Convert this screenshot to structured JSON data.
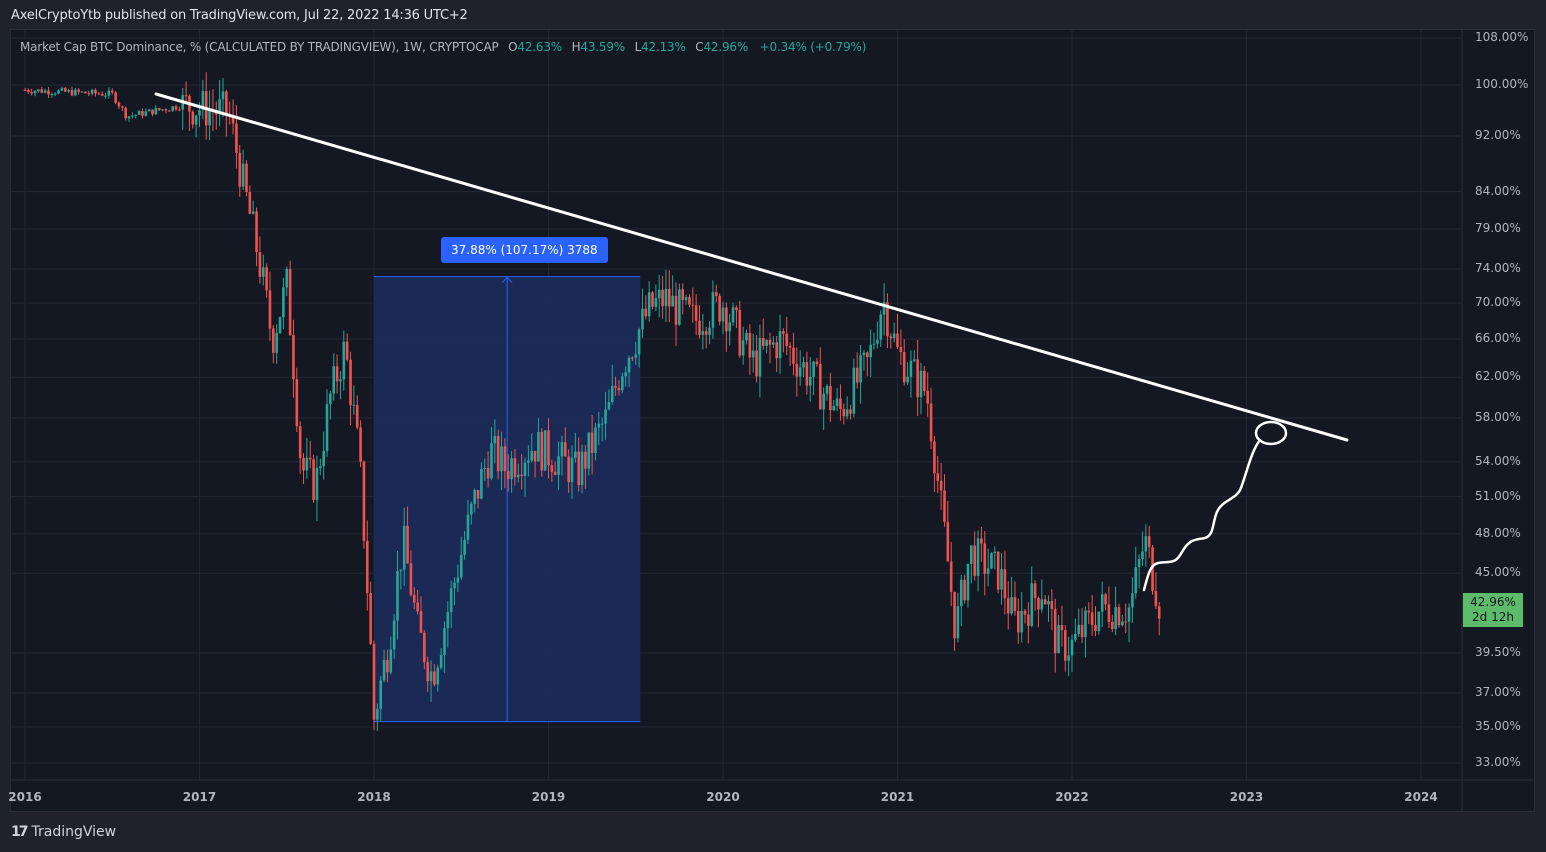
{
  "header": {
    "published": "AxelCryptoYtb published on TradingView.com, Jul 22, 2022 14:36 UTC+2"
  },
  "legend": {
    "symbol": "Market Cap BTC Dominance, % (CALCULATED BY TRADINGVIEW), 1W, CRYPTOCAP",
    "open_key": "O",
    "open": "42.63%",
    "high_key": "H",
    "high": "43.59%",
    "low_key": "L",
    "low": "42.13%",
    "close_key": "C",
    "close": "42.96%",
    "change": "+0.34% (+0.79%)"
  },
  "price_axis": {
    "labels": [
      "108.00%",
      "100.00%",
      "92.00%",
      "84.00%",
      "79.00%",
      "74.00%",
      "70.00%",
      "66.00%",
      "62.00%",
      "58.00%",
      "54.00%",
      "51.00%",
      "48.00%",
      "45.00%",
      "39.50%",
      "37.00%",
      "35.00%",
      "33.00%"
    ],
    "last_price": "42.96%",
    "countdown": "2d 12h"
  },
  "time_axis": {
    "labels": [
      "2016",
      "2017",
      "2018",
      "2019",
      "2020",
      "2021",
      "2022",
      "2023",
      "2024"
    ]
  },
  "measure_tool": {
    "label": "37.88% (107.17%) 3788"
  },
  "footer": {
    "brand": "TradingView",
    "logo": "17"
  },
  "colors": {
    "up": "#26a69a",
    "down": "#ef5350",
    "background": "#141823",
    "grid": "#232733",
    "measure_fill": "#1b2a58",
    "measure_line": "#2962ff",
    "drawing": "#ffffff",
    "last_badge": "#5dbc6a"
  },
  "chart_data": {
    "type": "candlestick",
    "title": "Market Cap BTC Dominance, % (CALCULATED BY TRADINGVIEW), 1W, CRYPTOCAP",
    "xlabel": "",
    "ylabel": "%",
    "y_scale": "log",
    "ylim": [
      32,
      110
    ],
    "x_ticks": [
      "2016",
      "2017",
      "2018",
      "2019",
      "2020",
      "2021",
      "2022",
      "2023",
      "2024"
    ],
    "y_ticks": [
      108,
      100,
      92,
      84,
      79,
      74,
      70,
      66,
      62,
      58,
      54,
      51,
      48,
      45,
      39.5,
      37,
      35,
      33
    ],
    "grid": true,
    "last": {
      "open": 42.63,
      "high": 43.59,
      "low": 42.13,
      "close": 42.96,
      "change": 0.34,
      "change_pct": 0.79
    },
    "approx_weekly_close_path": [
      {
        "date": "2016-01",
        "value": 99.2
      },
      {
        "date": "2016-07",
        "value": 98.5
      },
      {
        "date": "2016-08",
        "value": 95.0
      },
      {
        "date": "2016-12",
        "value": 96.8
      },
      {
        "date": "2017-03",
        "value": 95.5
      },
      {
        "date": "2017-04",
        "value": 85.0
      },
      {
        "date": "2017-05",
        "value": 76.0
      },
      {
        "date": "2017-06",
        "value": 66.0
      },
      {
        "date": "2017-07",
        "value": 72.0
      },
      {
        "date": "2017-08",
        "value": 53.5
      },
      {
        "date": "2017-09",
        "value": 52.0
      },
      {
        "date": "2017-10",
        "value": 60.0
      },
      {
        "date": "2017-11",
        "value": 65.0
      },
      {
        "date": "2017-12",
        "value": 54.0
      },
      {
        "date": "2018-01",
        "value": 35.5
      },
      {
        "date": "2018-02",
        "value": 40.0
      },
      {
        "date": "2018-03",
        "value": 47.5
      },
      {
        "date": "2018-04",
        "value": 41.0
      },
      {
        "date": "2018-05",
        "value": 38.0
      },
      {
        "date": "2018-06",
        "value": 42.0
      },
      {
        "date": "2018-08",
        "value": 51.0
      },
      {
        "date": "2018-09",
        "value": 55.0
      },
      {
        "date": "2018-10",
        "value": 53.5
      },
      {
        "date": "2018-12",
        "value": 55.5
      },
      {
        "date": "2019-02",
        "value": 54.0
      },
      {
        "date": "2019-03",
        "value": 53.0
      },
      {
        "date": "2019-05",
        "value": 58.0
      },
      {
        "date": "2019-06",
        "value": 63.0
      },
      {
        "date": "2019-08",
        "value": 69.5
      },
      {
        "date": "2019-09",
        "value": 70.5
      },
      {
        "date": "2019-11",
        "value": 68.0
      },
      {
        "date": "2020-01",
        "value": 70.0
      },
      {
        "date": "2020-03",
        "value": 63.5
      },
      {
        "date": "2020-05",
        "value": 66.0
      },
      {
        "date": "2020-06",
        "value": 64.0
      },
      {
        "date": "2020-09",
        "value": 58.5
      },
      {
        "date": "2020-11",
        "value": 63.5
      },
      {
        "date": "2020-12",
        "value": 70.5
      },
      {
        "date": "2021-01",
        "value": 64.5
      },
      {
        "date": "2021-03",
        "value": 60.5
      },
      {
        "date": "2021-04",
        "value": 50.0
      },
      {
        "date": "2021-05",
        "value": 41.0
      },
      {
        "date": "2021-06",
        "value": 46.5
      },
      {
        "date": "2021-08",
        "value": 45.0
      },
      {
        "date": "2021-09",
        "value": 41.5
      },
      {
        "date": "2021-11",
        "value": 44.0
      },
      {
        "date": "2021-12",
        "value": 40.0
      },
      {
        "date": "2022-01",
        "value": 40.0
      },
      {
        "date": "2022-03",
        "value": 42.5
      },
      {
        "date": "2022-05",
        "value": 42.5
      },
      {
        "date": "2022-06",
        "value": 47.5
      },
      {
        "date": "2022-07",
        "value": 42.96
      }
    ],
    "annotations": [
      {
        "type": "trendline",
        "from": {
          "date": "2016-10",
          "value": 98.5
        },
        "to": {
          "date": "2023-08",
          "value": 56.0
        }
      },
      {
        "type": "price_range",
        "from": {
          "date": "2018-01",
          "value": 35.3
        },
        "to": {
          "date": "2019-08",
          "value": 73.1
        },
        "label": "37.88% (107.17%) 3788"
      },
      {
        "type": "freehand_projection",
        "from": {
          "date": "2022-07",
          "value": 43.5
        },
        "to": {
          "date": "2023-02",
          "value": 57.5
        }
      }
    ]
  }
}
